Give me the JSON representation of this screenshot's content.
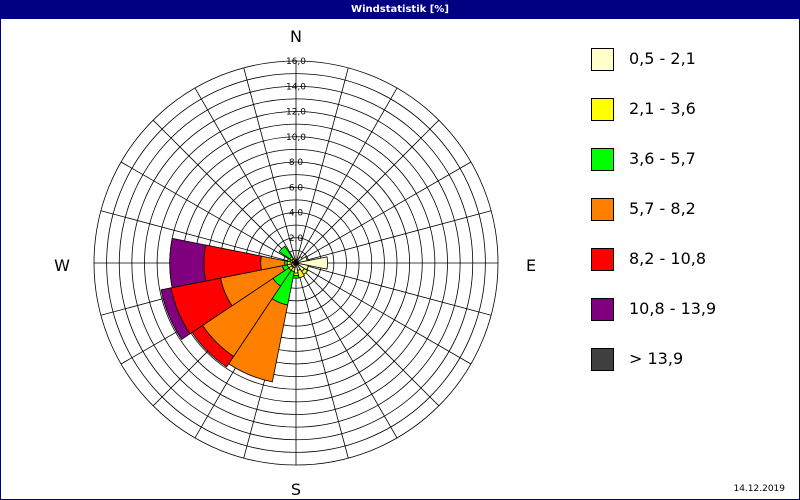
{
  "title": "Windstatistik [%]",
  "date": "14.12.2019",
  "chart_data": {
    "type": "wind-rose",
    "title": "Windstatistik [%]",
    "unit": "%",
    "rmax": 16,
    "grid": true,
    "radial_ticks": [
      "2,0",
      "4,0",
      "6,0",
      "8,0",
      "10,0",
      "12,0",
      "14,0",
      "16,0"
    ],
    "radial_tick_values": [
      2,
      4,
      6,
      8,
      10,
      12,
      14,
      16
    ],
    "directions_deg": [
      0,
      22.5,
      45,
      67.5,
      90,
      112.5,
      135,
      157.5,
      180,
      202.5,
      225,
      247.5,
      270,
      292.5,
      315,
      337.5
    ],
    "cardinal_labels": {
      "n": "N",
      "e": "E",
      "s": "S",
      "w": "W"
    },
    "legend_position": "right",
    "series": [
      {
        "name": "0,5 - 2,1",
        "color": "#ffffcc",
        "values": [
          0.1,
          0.3,
          0.6,
          0.9,
          2.5,
          1.0,
          0.8,
          0.6,
          0.8,
          0.4,
          0.4,
          0.4,
          0.4,
          0.3,
          0.4,
          0.2
        ]
      },
      {
        "name": "2,1 - 3,6",
        "color": "#ffff00",
        "values": [
          0,
          0,
          0,
          0,
          0,
          0,
          0.3,
          0.6,
          0.2,
          0.3,
          0.3,
          0.3,
          0.3,
          0.2,
          0.2,
          0
        ]
      },
      {
        "name": "3,6 - 5,7",
        "color": "#00ff00",
        "values": [
          0,
          0,
          0,
          0,
          0,
          0,
          0,
          0,
          0.2,
          2.7,
          1.5,
          0.4,
          0.2,
          0.2,
          1.0,
          0
        ]
      },
      {
        "name": "5,7 - 8,2",
        "color": "#ff8000",
        "values": [
          0,
          0,
          0,
          0,
          0,
          0,
          0,
          0,
          0,
          6.2,
          6.7,
          5.0,
          1.9,
          0,
          0,
          0
        ]
      },
      {
        "name": "8,2 - 10,8",
        "color": "#ff0000",
        "values": [
          0,
          0,
          0,
          0,
          0,
          0,
          0,
          0,
          0,
          0,
          1.0,
          4.0,
          4.5,
          0,
          0,
          0
        ]
      },
      {
        "name": "10,8 - 13,9",
        "color": "#800080",
        "values": [
          0,
          0,
          0,
          0,
          0,
          0,
          0,
          0,
          0,
          0,
          0,
          0.8,
          2.7,
          0,
          0,
          0
        ]
      },
      {
        "name": "> 13,9",
        "color": "#404040",
        "values": [
          0,
          0,
          0,
          0,
          0,
          0,
          0,
          0,
          0,
          0,
          0,
          0,
          0,
          0,
          0,
          0
        ]
      }
    ]
  }
}
